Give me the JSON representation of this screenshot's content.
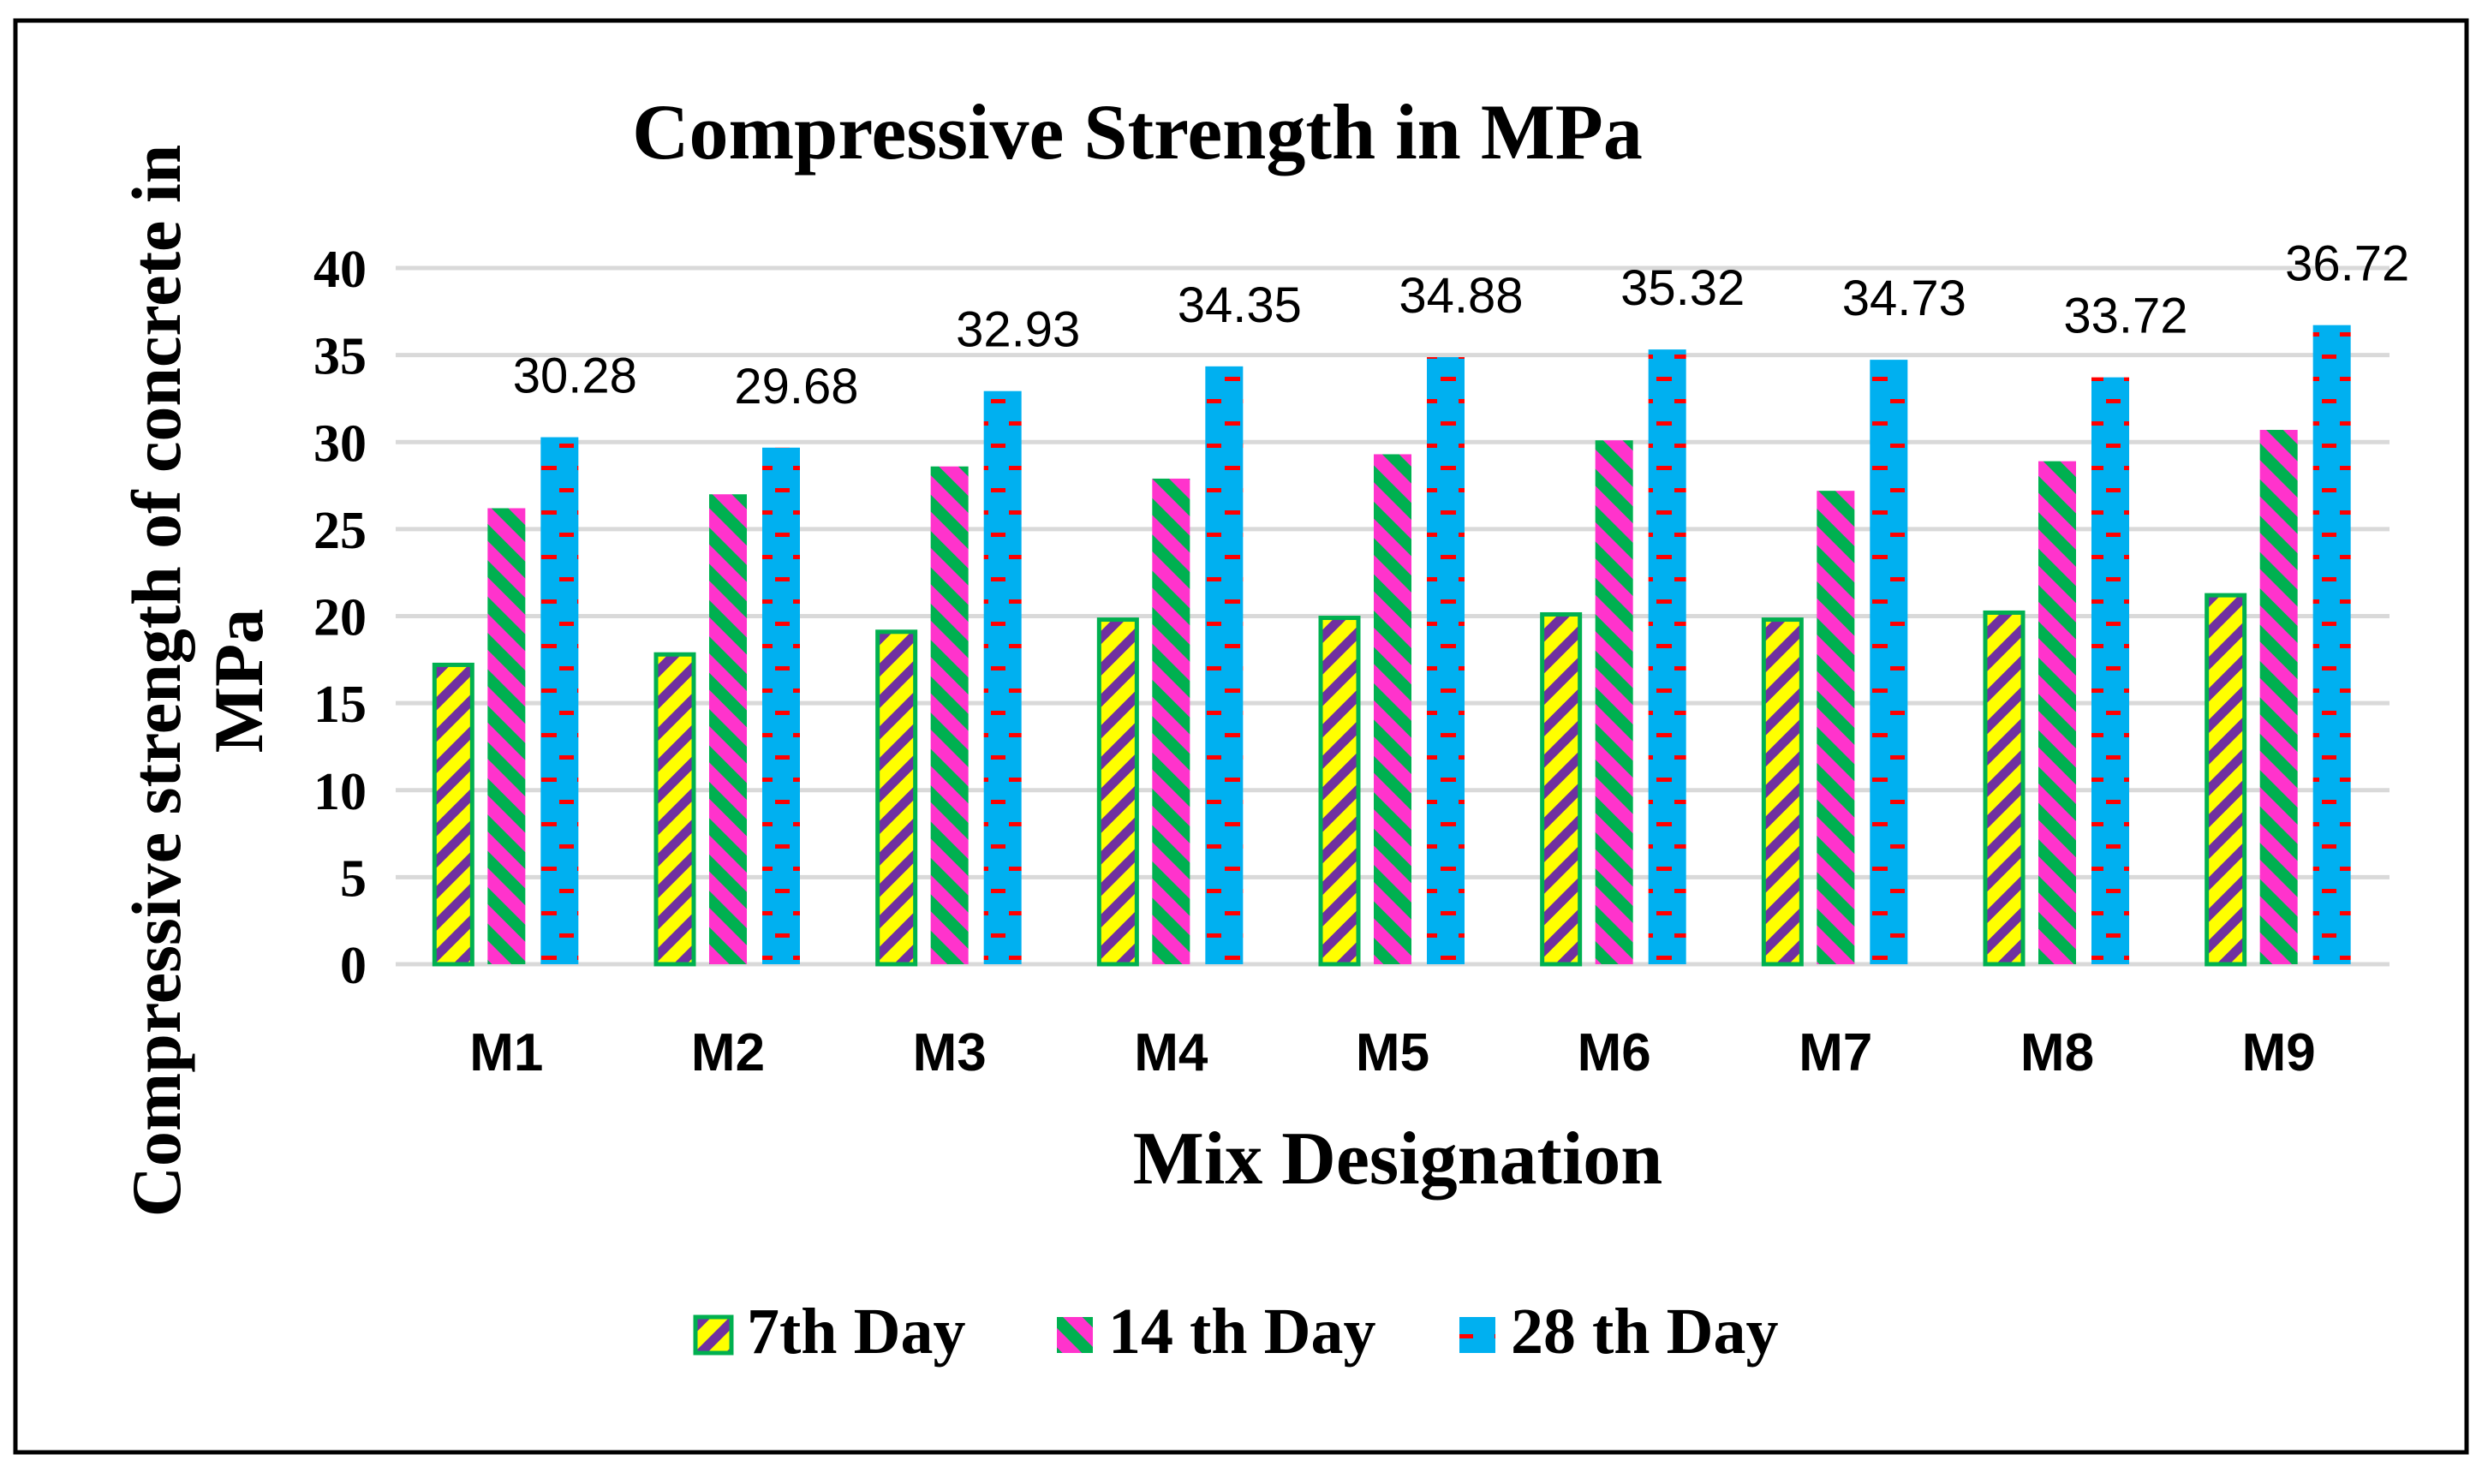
{
  "chart_data": {
    "type": "bar",
    "title": "Compressive Strength in MPa",
    "xlabel": "Mix Designation",
    "ylabel": "Compressive strength of concrete in MPa",
    "ylim": [
      0,
      40
    ],
    "yticks": [
      "0",
      "5",
      "10",
      "15",
      "20",
      "25",
      "30",
      "35",
      "40"
    ],
    "grid": true,
    "legend_position": "bottom",
    "categories": [
      "M1",
      "M2",
      "M3",
      "M4",
      "M5",
      "M6",
      "M7",
      "M8",
      "M9"
    ],
    "series": [
      {
        "name": "7th Day",
        "values": [
          17.2,
          17.8,
          19.1,
          19.8,
          19.9,
          20.1,
          19.8,
          20.2,
          21.2
        ],
        "colors": {
          "fill": "#ffff00",
          "stripe": "#7030a0",
          "border": "#00b050"
        }
      },
      {
        "name": "14 th Day",
        "values": [
          26.2,
          27.0,
          28.6,
          27.9,
          29.3,
          30.1,
          27.2,
          28.9,
          30.7
        ],
        "colors": {
          "fill": "#ff33cc",
          "stripe": "#00b050"
        }
      },
      {
        "name": "28 th Day",
        "values": [
          30.28,
          29.68,
          32.93,
          34.35,
          34.88,
          35.32,
          34.73,
          33.72,
          36.72
        ],
        "data_labels": [
          "30.28",
          "29.68",
          "32.93",
          "34.35",
          "34.88",
          "35.32",
          "34.73",
          "33.72",
          "36.72"
        ],
        "colors": {
          "fill": "#00b0f0",
          "dash": "#ff0000"
        }
      }
    ]
  }
}
